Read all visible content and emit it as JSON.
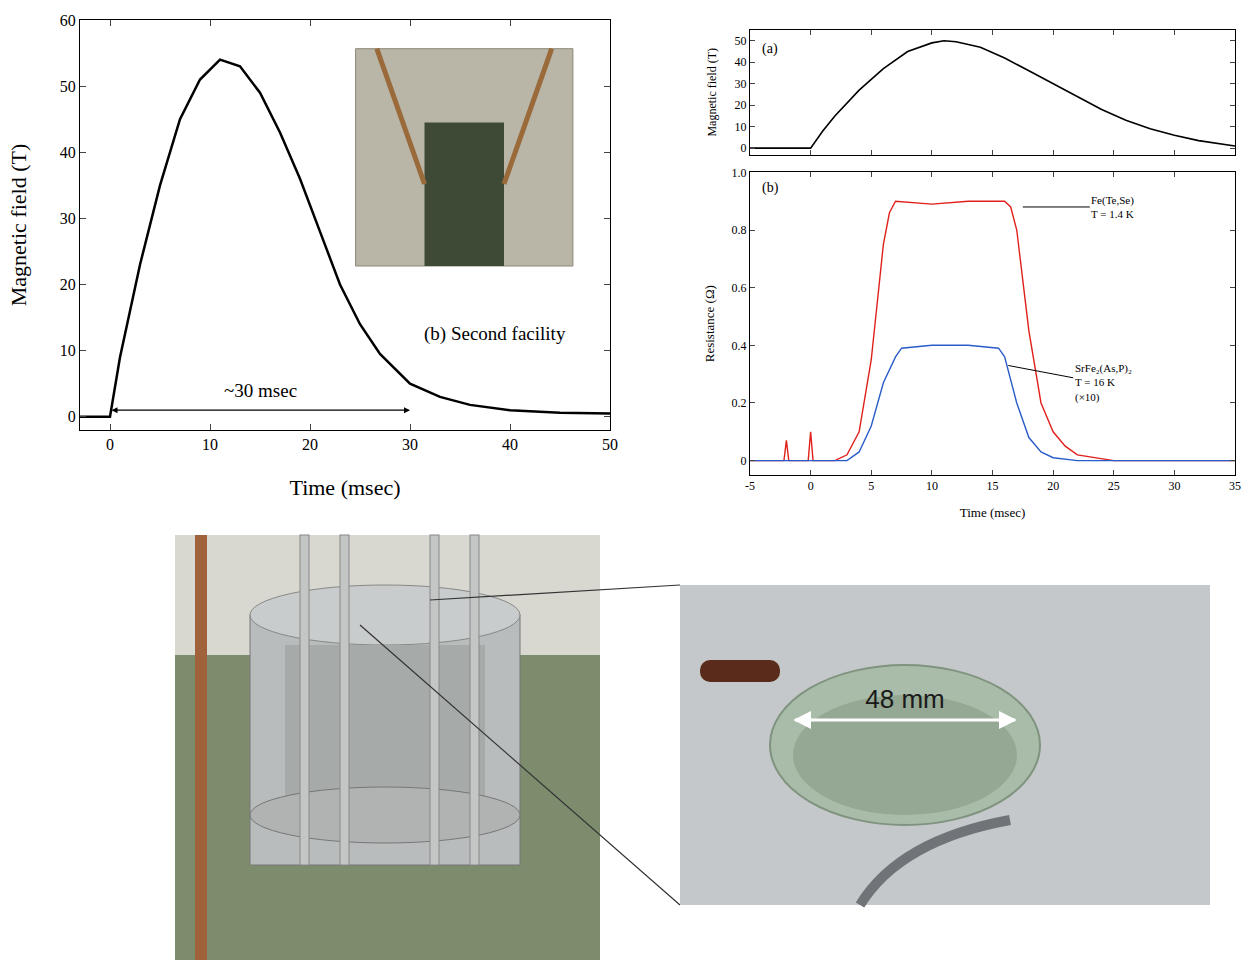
{
  "chart_data": [
    {
      "type": "line",
      "xlabel": "Time (msec)",
      "ylabel": "Magnetic field (T)",
      "x": [
        -3,
        0,
        1,
        2,
        3,
        5,
        7,
        9,
        11,
        13,
        15,
        17,
        19,
        21,
        23,
        25,
        27,
        30,
        33,
        36,
        40,
        45,
        50
      ],
      "values": [
        0,
        0,
        9,
        16,
        23,
        35,
        45,
        51,
        54,
        53,
        49,
        43,
        36,
        28,
        20,
        14,
        9.5,
        5,
        3,
        1.8,
        1,
        0.6,
        0.5
      ],
      "color": "#000000",
      "xlim": [
        -3,
        50
      ],
      "xticks": [
        0,
        10,
        20,
        30,
        40,
        50
      ],
      "ylim": [
        -2,
        60
      ],
      "yticks": [
        0,
        10,
        20,
        30,
        40,
        50,
        60
      ],
      "annotations": [
        {
          "text": "(b) Second facility",
          "x": 38.5,
          "y": 12.5
        },
        {
          "text": "~30 msec",
          "x": 15,
          "y": 4
        }
      ],
      "arrow": {
        "from": 0,
        "to": 30,
        "y": 1
      }
    },
    {
      "type": "line",
      "label": "(a)",
      "ylabel": "Magnetic field (T)",
      "x": [
        -5,
        0,
        1,
        2,
        4,
        6,
        8,
        10,
        11,
        12,
        14,
        16,
        18,
        20,
        22,
        24,
        26,
        28,
        30,
        32,
        35
      ],
      "values": [
        0,
        0,
        8,
        15,
        27,
        37,
        45,
        49,
        50,
        49.5,
        47,
        42,
        36,
        30,
        24,
        18,
        13,
        9,
        6,
        3.5,
        1
      ],
      "color": "#000000",
      "xlim": [
        -5,
        35
      ],
      "xticks": [
        -5,
        0,
        5,
        10,
        15,
        20,
        25,
        30,
        35
      ],
      "ylim": [
        -3,
        55
      ],
      "yticks": [
        0,
        10,
        20,
        30,
        40,
        50
      ],
      "tick_labels": "y"
    },
    {
      "type": "line",
      "label": "(b)",
      "xlabel": "Time (msec)",
      "ylabel": "Resistance (Ω)",
      "series": [
        {
          "name": "Fe(Te,Se)",
          "color": "#e0201b",
          "x": [
            -5,
            -2.2,
            -2,
            -1.8,
            -0.2,
            0,
            0.2,
            2,
            3,
            4,
            5,
            6,
            6.5,
            7,
            10,
            13,
            16,
            16.5,
            17,
            18,
            19,
            20,
            21,
            22,
            25,
            30,
            35
          ],
          "values": [
            0,
            0,
            0.07,
            0,
            0,
            0.1,
            0,
            0,
            0.02,
            0.1,
            0.35,
            0.75,
            0.86,
            0.9,
            0.89,
            0.9,
            0.9,
            0.88,
            0.8,
            0.45,
            0.2,
            0.1,
            0.05,
            0.02,
            0,
            0,
            0
          ]
        },
        {
          "name": "SrFe₂(As,P)₂",
          "color": "#2a5cc9",
          "x": [
            -5,
            0,
            3,
            4,
            5,
            6,
            7,
            7.5,
            10,
            13,
            15.5,
            16,
            17,
            18,
            19,
            20,
            22,
            35
          ],
          "values": [
            0,
            0,
            0,
            0.03,
            0.12,
            0.27,
            0.36,
            0.39,
            0.4,
            0.4,
            0.39,
            0.36,
            0.2,
            0.08,
            0.03,
            0.01,
            0,
            0
          ]
        }
      ],
      "xlim": [
        -5,
        35
      ],
      "xticks": [
        -5,
        0,
        5,
        10,
        15,
        20,
        25,
        30,
        35
      ],
      "ylim": [
        -0.05,
        1
      ],
      "yticks": [
        0,
        0.2,
        0.4,
        0.6,
        0.8,
        {
          "value": 1,
          "label": "1.0"
        }
      ],
      "annotations": [
        {
          "text": [
            "Fe(Te,Se)",
            "T = 1.4 K"
          ],
          "point": [
            17.5,
            0.88
          ]
        },
        {
          "text": [
            "SrFe₂(As,P)₂",
            "T = 16 K",
            "(×10)"
          ],
          "point": [
            16.3,
            0.33
          ]
        }
      ]
    }
  ],
  "photo_panel": {
    "dimension_label": "48 mm"
  }
}
